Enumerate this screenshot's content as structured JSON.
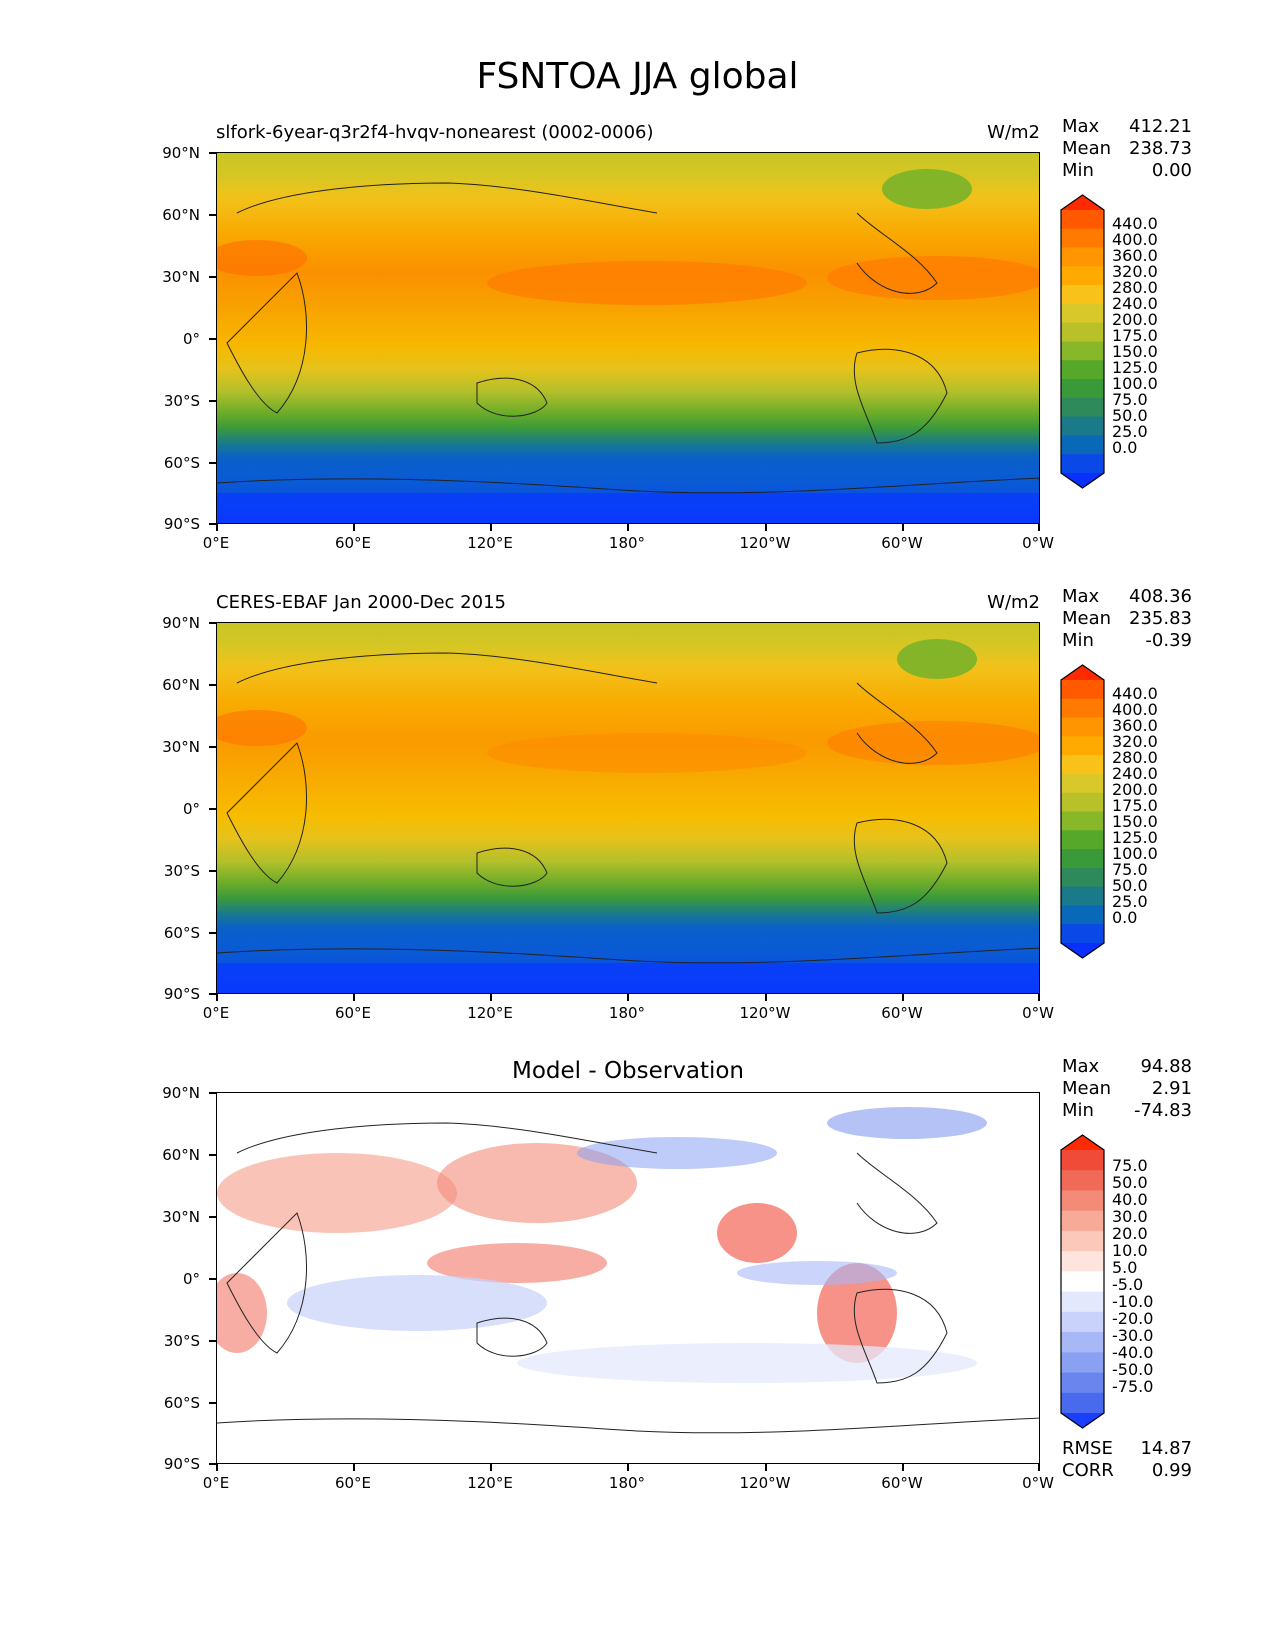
{
  "title": "FSNTOA JJA global",
  "axes": {
    "lat_labels": [
      "90°N",
      "60°N",
      "30°N",
      "0°",
      "30°S",
      "60°S",
      "90°S"
    ],
    "lon_labels": [
      "0°E",
      "60°E",
      "120°E",
      "180°",
      "120°W",
      "60°W",
      "0°W"
    ]
  },
  "panels": [
    {
      "id": "model",
      "title_left": "slfork-6year-q3r2f4-hvqv-nonearest (0002-0006)",
      "title_center": "",
      "units": "W/m2",
      "stats": [
        {
          "label": "Max",
          "value": "412.21"
        },
        {
          "label": "Mean",
          "value": "238.73"
        },
        {
          "label": "Min",
          "value": "0.00"
        }
      ],
      "colorbar_labels": [
        "440.0",
        "400.0",
        "360.0",
        "320.0",
        "280.0",
        "240.0",
        "200.0",
        "175.0",
        "150.0",
        "125.0",
        "100.0",
        "75.0",
        "50.0",
        "25.0",
        "0.0"
      ],
      "colorbar_colors": [
        "#ff2a00",
        "#ff5a00",
        "#ff7a00",
        "#ff9500",
        "#ffaa00",
        "#f8c21a",
        "#d8c82a",
        "#b8c12a",
        "#88b82a",
        "#55a82a",
        "#3a9a3a",
        "#2e8a5a",
        "#1a7a8a",
        "#0a68b8",
        "#0a48e8",
        "#0a30ff"
      ]
    },
    {
      "id": "obs",
      "title_left": "CERES-EBAF Jan 2000-Dec 2015",
      "title_center": "",
      "units": "W/m2",
      "stats": [
        {
          "label": "Max",
          "value": "408.36"
        },
        {
          "label": "Mean",
          "value": "235.83"
        },
        {
          "label": "Min",
          "value": "-0.39"
        }
      ],
      "colorbar_labels": [
        "440.0",
        "400.0",
        "360.0",
        "320.0",
        "280.0",
        "240.0",
        "200.0",
        "175.0",
        "150.0",
        "125.0",
        "100.0",
        "75.0",
        "50.0",
        "25.0",
        "0.0"
      ],
      "colorbar_colors": [
        "#ff2a00",
        "#ff5a00",
        "#ff7a00",
        "#ff9500",
        "#ffaa00",
        "#f8c21a",
        "#d8c82a",
        "#b8c12a",
        "#88b82a",
        "#55a82a",
        "#3a9a3a",
        "#2e8a5a",
        "#1a7a8a",
        "#0a68b8",
        "#0a48e8",
        "#0a30ff"
      ]
    },
    {
      "id": "diff",
      "title_left": "",
      "title_center": "Model - Observation",
      "units": "",
      "stats": [
        {
          "label": "Max",
          "value": "94.88"
        },
        {
          "label": "Mean",
          "value": "2.91"
        },
        {
          "label": "Min",
          "value": "-74.83"
        }
      ],
      "colorbar_labels": [
        "75.0",
        "50.0",
        "40.0",
        "30.0",
        "20.0",
        "10.0",
        "5.0",
        "-5.0",
        "-10.0",
        "-20.0",
        "-30.0",
        "-40.0",
        "-50.0",
        "-75.0"
      ],
      "colorbar_colors": [
        "#ff2a00",
        "#f04a38",
        "#f06a58",
        "#f48a78",
        "#f8aa98",
        "#fcc8ba",
        "#fde4dc",
        "#ffffff",
        "#e4e8fc",
        "#c8d2fa",
        "#a8b8f6",
        "#8aa0f2",
        "#6a86ee",
        "#4a6aee",
        "#1a40ff"
      ],
      "error_stats": [
        {
          "label": "RMSE",
          "value": "14.87"
        },
        {
          "label": "CORR",
          "value": "0.99"
        }
      ]
    }
  ]
}
